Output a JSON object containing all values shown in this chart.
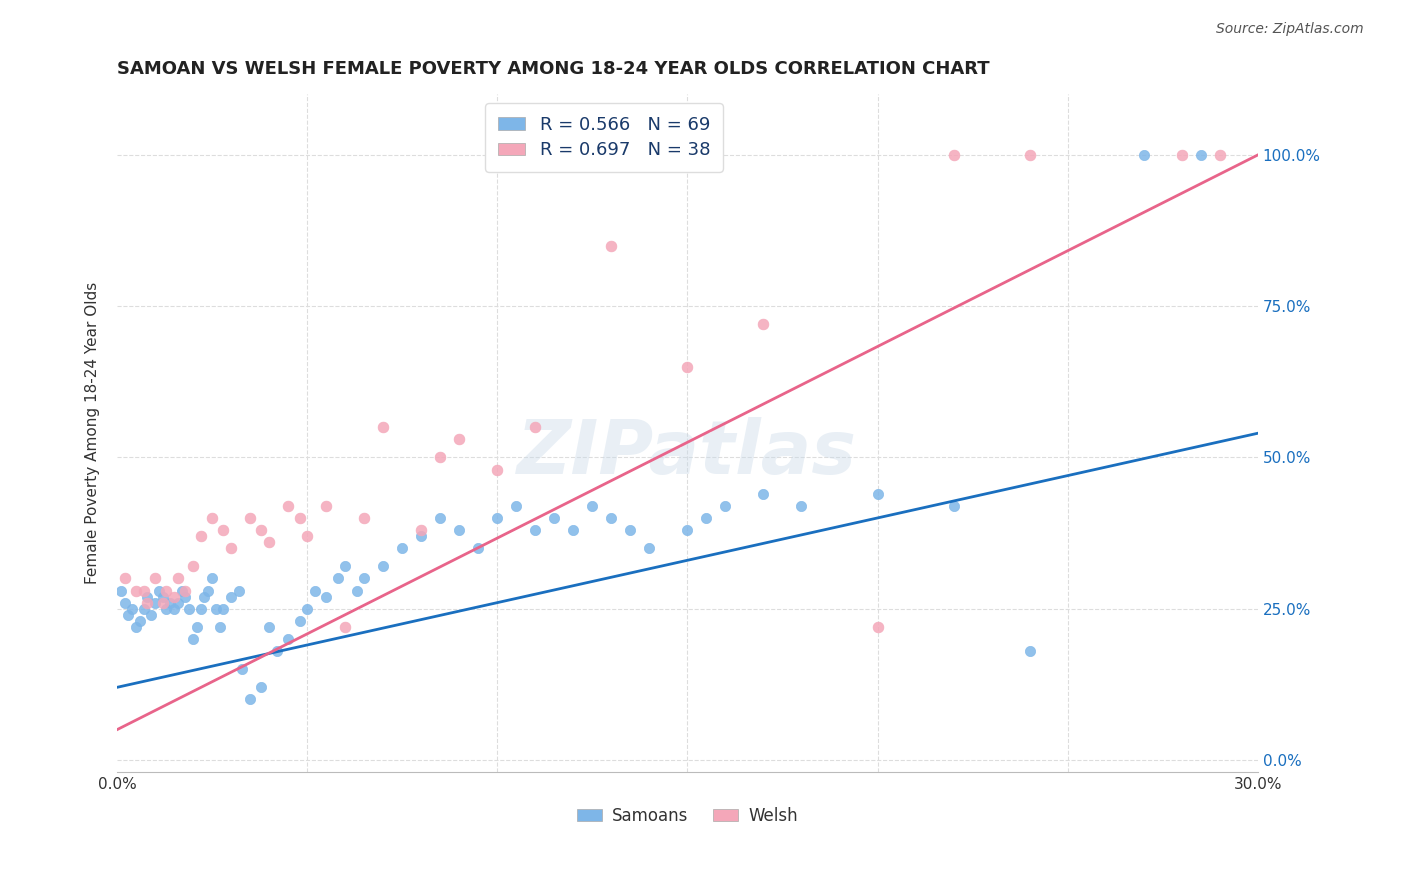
{
  "title": "SAMOAN VS WELSH FEMALE POVERTY AMONG 18-24 YEAR OLDS CORRELATION CHART",
  "source": "Source: ZipAtlas.com",
  "ylabel": "Female Poverty Among 18-24 Year Olds",
  "xlim": [
    0.0,
    0.3
  ],
  "ylim": [
    -0.02,
    1.1
  ],
  "xtick_labels": [
    "0.0%",
    "",
    "",
    "",
    "",
    "",
    "30.0%"
  ],
  "ytick_labels_right": [
    "0.0%",
    "25.0%",
    "50.0%",
    "75.0%",
    "100.0%"
  ],
  "samoans_R": 0.566,
  "samoans_N": 69,
  "welsh_R": 0.697,
  "welsh_N": 38,
  "samoans_color": "#7EB6E8",
  "welsh_color": "#F4A7B9",
  "samoans_line_color": "#1A6FBF",
  "welsh_line_color": "#E8648A",
  "legend_label_samoans": "Samoans",
  "legend_label_welsh": "Welsh",
  "watermark": "ZIPatlas",
  "background_color": "#FFFFFF",
  "grid_color": "#DDDDDD",
  "samoans_x": [
    0.001,
    0.002,
    0.003,
    0.004,
    0.005,
    0.006,
    0.007,
    0.008,
    0.009,
    0.01,
    0.011,
    0.012,
    0.013,
    0.014,
    0.015,
    0.016,
    0.017,
    0.018,
    0.019,
    0.02,
    0.021,
    0.022,
    0.023,
    0.024,
    0.025,
    0.026,
    0.027,
    0.028,
    0.03,
    0.032,
    0.033,
    0.035,
    0.038,
    0.04,
    0.042,
    0.045,
    0.048,
    0.05,
    0.052,
    0.055,
    0.058,
    0.06,
    0.063,
    0.065,
    0.07,
    0.075,
    0.08,
    0.085,
    0.09,
    0.095,
    0.1,
    0.105,
    0.11,
    0.115,
    0.12,
    0.125,
    0.13,
    0.135,
    0.14,
    0.15,
    0.155,
    0.16,
    0.17,
    0.18,
    0.2,
    0.22,
    0.24,
    0.27,
    0.285
  ],
  "samoans_y": [
    0.28,
    0.26,
    0.24,
    0.25,
    0.22,
    0.23,
    0.25,
    0.27,
    0.24,
    0.26,
    0.28,
    0.27,
    0.25,
    0.26,
    0.25,
    0.26,
    0.28,
    0.27,
    0.25,
    0.2,
    0.22,
    0.25,
    0.27,
    0.28,
    0.3,
    0.25,
    0.22,
    0.25,
    0.27,
    0.28,
    0.15,
    0.1,
    0.12,
    0.22,
    0.18,
    0.2,
    0.23,
    0.25,
    0.28,
    0.27,
    0.3,
    0.32,
    0.28,
    0.3,
    0.32,
    0.35,
    0.37,
    0.4,
    0.38,
    0.35,
    0.4,
    0.42,
    0.38,
    0.4,
    0.38,
    0.42,
    0.4,
    0.38,
    0.35,
    0.38,
    0.4,
    0.42,
    0.44,
    0.42,
    0.44,
    0.42,
    0.18,
    1.0,
    1.0
  ],
  "welsh_x": [
    0.002,
    0.005,
    0.007,
    0.008,
    0.01,
    0.012,
    0.013,
    0.015,
    0.016,
    0.018,
    0.02,
    0.022,
    0.025,
    0.028,
    0.03,
    0.035,
    0.038,
    0.04,
    0.045,
    0.048,
    0.05,
    0.055,
    0.06,
    0.065,
    0.07,
    0.08,
    0.085,
    0.09,
    0.1,
    0.11,
    0.13,
    0.15,
    0.17,
    0.2,
    0.22,
    0.24,
    0.28,
    0.29
  ],
  "welsh_y": [
    0.3,
    0.28,
    0.28,
    0.26,
    0.3,
    0.26,
    0.28,
    0.27,
    0.3,
    0.28,
    0.32,
    0.37,
    0.4,
    0.38,
    0.35,
    0.4,
    0.38,
    0.36,
    0.42,
    0.4,
    0.37,
    0.42,
    0.22,
    0.4,
    0.55,
    0.38,
    0.5,
    0.53,
    0.48,
    0.55,
    0.85,
    0.65,
    0.72,
    0.22,
    1.0,
    1.0,
    1.0,
    1.0
  ],
  "samoans_line_x": [
    0.0,
    0.3
  ],
  "samoans_line_y": [
    0.12,
    0.54
  ],
  "welsh_line_x": [
    0.0,
    0.3
  ],
  "welsh_line_y": [
    0.05,
    1.0
  ]
}
